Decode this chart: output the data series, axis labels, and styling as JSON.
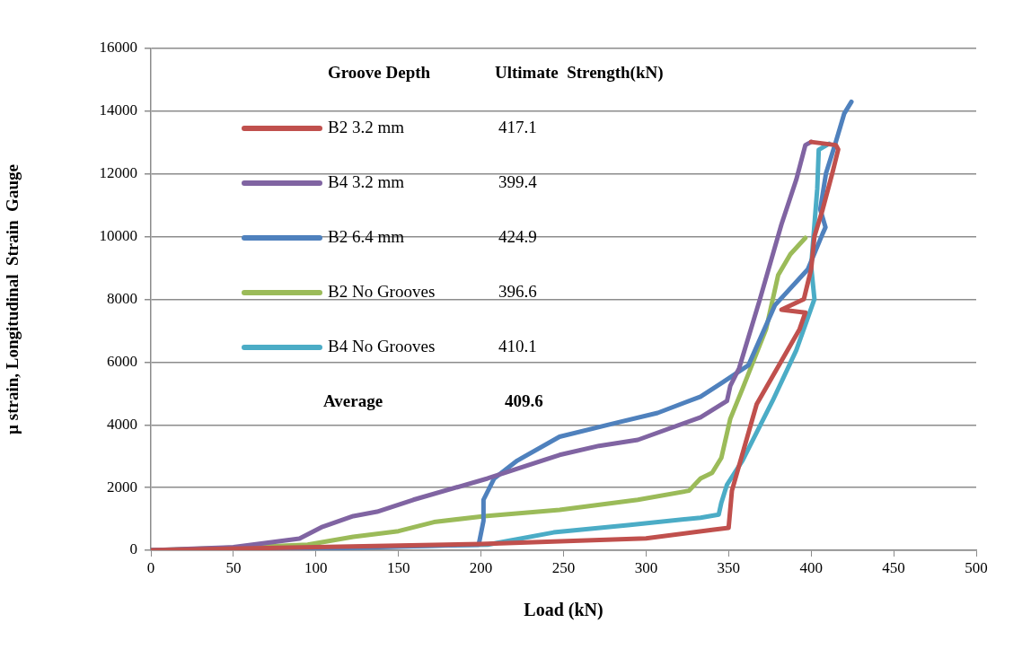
{
  "chart_data": {
    "type": "line",
    "xlabel": "Load (kN)",
    "ylabel": "µ strain, Longitudinal  Strain  Gauge",
    "legend_title": "Groove Depth",
    "legend": "top left",
    "grid": "y",
    "marker": "none",
    "line_style": "solid",
    "xlim": [
      0,
      500
    ],
    "xticks": [
      0,
      50,
      100,
      150,
      200,
      250,
      300,
      350,
      400,
      450,
      500
    ],
    "ylim": [
      0,
      16000
    ],
    "yticks": [
      0,
      2000,
      4000,
      6000,
      8000,
      10000,
      12000,
      14000,
      16000
    ],
    "annotations": [
      "Ultimate  Strength(kN)",
      "417.1",
      "399.4",
      "424.9",
      "396.6",
      "410.1",
      "Average",
      "409.6"
    ],
    "series": [
      {
        "name": "B2 3.2 mm",
        "color": "#c0504d",
        "x": [
          0,
          100,
          200,
          300,
          340,
          350,
          352,
          367,
          393,
          396.5,
          382,
          395.6,
          400,
          402,
          407,
          412.8,
          416.4,
          415,
          400
        ],
        "values": [
          0,
          100,
          200,
          380,
          650,
          715,
          1900,
          4660,
          7050,
          7580,
          7670,
          8010,
          8960,
          10010,
          10870,
          12020,
          12780,
          12920,
          13020
        ]
      },
      {
        "name": "B4 3.2 mm",
        "color": "#8064a2",
        "x": [
          0,
          50,
          90,
          104,
          122.6,
          137,
          159,
          204,
          247.6,
          271.5,
          295,
          333,
          349,
          351,
          356.4,
          369,
          382,
          391,
          396.5,
          400
        ],
        "values": [
          0,
          100,
          370,
          750,
          1090,
          1230,
          1610,
          2290,
          3040,
          3330,
          3520,
          4240,
          4760,
          5240,
          5810,
          8010,
          10390,
          11820,
          12920,
          13020
        ]
      },
      {
        "name": "B2 6.4 mm",
        "color": "#4f81bd",
        "x": [
          0,
          100,
          198.6,
          201.5,
          201.5,
          208,
          222,
          247.6,
          280,
          307,
          333,
          345.6,
          362,
          378,
          398,
          407,
          408.7,
          405.5,
          409,
          414.6,
          420,
          424.4
        ],
        "values": [
          0,
          50,
          180,
          940,
          1610,
          2290,
          2860,
          3620,
          4040,
          4380,
          4900,
          5330,
          5900,
          7810,
          8960,
          10100,
          10300,
          10870,
          12020,
          12960,
          13920,
          14300
        ]
      },
      {
        "name": "B2 No Grooves",
        "color": "#9bbb59",
        "x": [
          0,
          50,
          95,
          122.6,
          150,
          171.5,
          202,
          247.6,
          295,
          326,
          333,
          340,
          345.6,
          351,
          358.4,
          372.7,
          380,
          387.4,
          396.5
        ],
        "values": [
          0,
          80,
          180,
          430,
          610,
          900,
          1090,
          1290,
          1610,
          1900,
          2290,
          2470,
          2950,
          4190,
          5150,
          7050,
          8770,
          9440,
          9960
        ]
      },
      {
        "name": "B4 No Grooves",
        "color": "#4bacc6",
        "x": [
          0,
          100,
          204,
          244,
          289,
          333,
          344,
          345.6,
          349,
          358.4,
          376.6,
          391,
          402,
          400,
          402,
          403.7,
          404.6,
          410.8
        ],
        "values": [
          0,
          80,
          180,
          570,
          800,
          1040,
          1140,
          1520,
          2090,
          2860,
          4760,
          6380,
          8010,
          9050,
          10390,
          11530,
          12770,
          12960
        ]
      }
    ]
  }
}
